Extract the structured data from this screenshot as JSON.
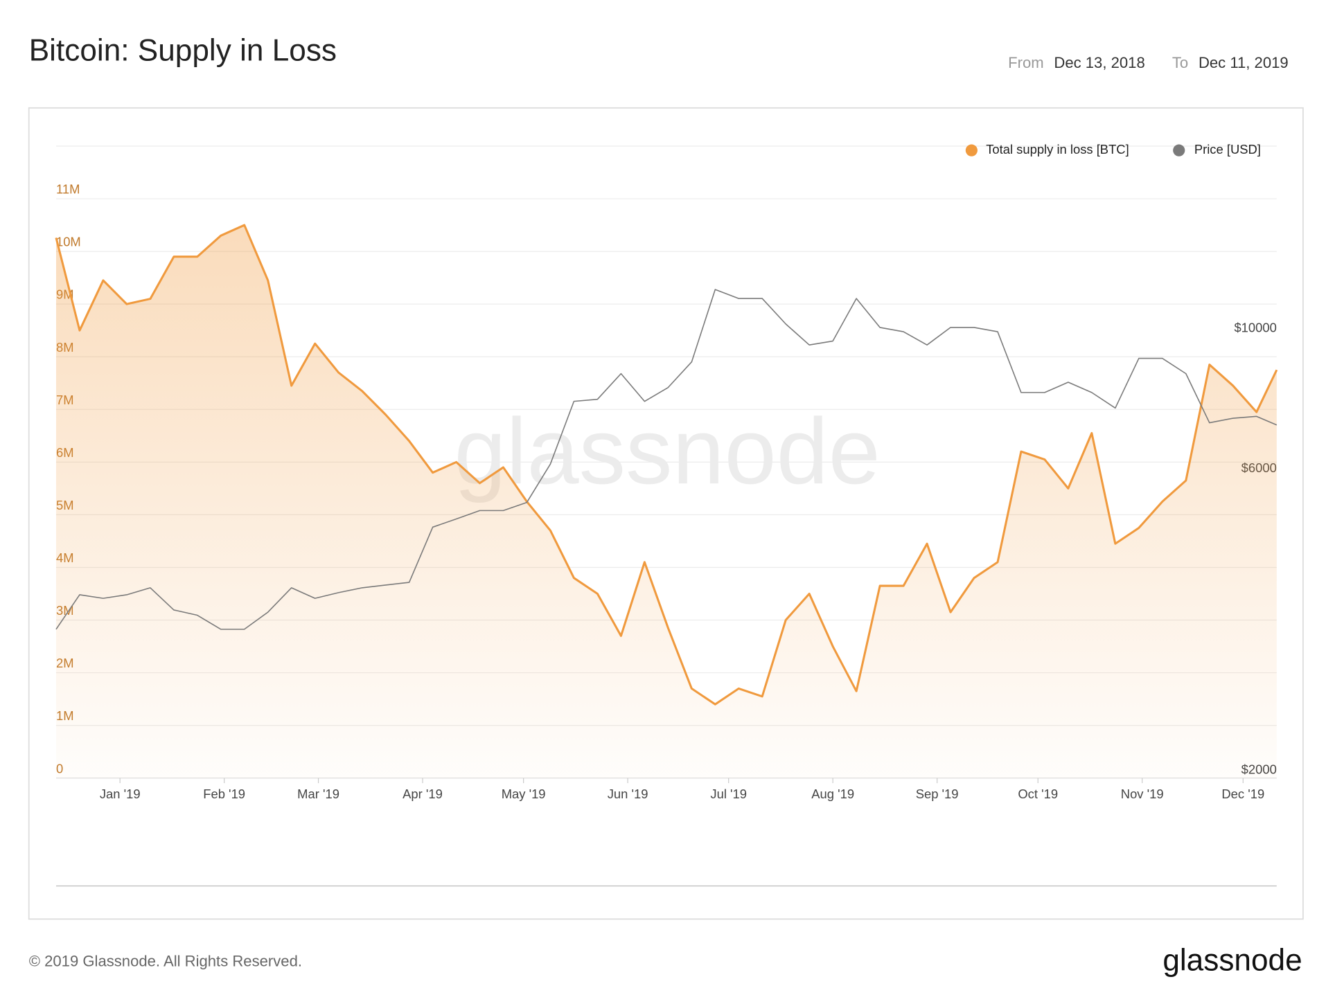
{
  "header": {
    "title": "Bitcoin: Supply in Loss",
    "from_label": "From",
    "from": "Dec 13, 2018",
    "to_label": "To",
    "to": "Dec 11, 2019"
  },
  "watermark": "glassnode",
  "footer": {
    "copyright": "© 2019 Glassnode. All Rights Reserved.",
    "logo": "glassnode"
  },
  "chart_data": {
    "type": "line",
    "legend": "top-right",
    "grid": true,
    "x": [
      "2018-12-13",
      "2018-12-20",
      "2018-12-27",
      "2019-01-03",
      "2019-01-10",
      "2019-01-17",
      "2019-01-24",
      "2019-01-31",
      "2019-02-07",
      "2019-02-14",
      "2019-02-21",
      "2019-02-28",
      "2019-03-07",
      "2019-03-14",
      "2019-03-21",
      "2019-03-28",
      "2019-04-04",
      "2019-04-11",
      "2019-04-18",
      "2019-04-25",
      "2019-05-02",
      "2019-05-09",
      "2019-05-16",
      "2019-05-23",
      "2019-05-30",
      "2019-06-06",
      "2019-06-13",
      "2019-06-20",
      "2019-06-27",
      "2019-07-04",
      "2019-07-11",
      "2019-07-18",
      "2019-07-25",
      "2019-08-01",
      "2019-08-08",
      "2019-08-15",
      "2019-08-22",
      "2019-08-29",
      "2019-09-05",
      "2019-09-12",
      "2019-09-19",
      "2019-09-26",
      "2019-10-03",
      "2019-10-10",
      "2019-10-17",
      "2019-10-24",
      "2019-10-31",
      "2019-11-07",
      "2019-11-14",
      "2019-11-21",
      "2019-11-28",
      "2019-12-05",
      "2019-12-11"
    ],
    "xlim": [
      "2018-12-13",
      "2019-12-11"
    ],
    "xticks": [
      {
        "value": "2019-01-01",
        "label": "Jan '19"
      },
      {
        "value": "2019-02-01",
        "label": "Feb '19"
      },
      {
        "value": "2019-03-01",
        "label": "Mar '19"
      },
      {
        "value": "2019-04-01",
        "label": "Apr '19"
      },
      {
        "value": "2019-05-01",
        "label": "May '19"
      },
      {
        "value": "2019-06-01",
        "label": "Jun '19"
      },
      {
        "value": "2019-07-01",
        "label": "Jul '19"
      },
      {
        "value": "2019-08-01",
        "label": "Aug '19"
      },
      {
        "value": "2019-09-01",
        "label": "Sep '19"
      },
      {
        "value": "2019-10-01",
        "label": "Oct '19"
      },
      {
        "value": "2019-11-01",
        "label": "Nov '19"
      },
      {
        "value": "2019-12-01",
        "label": "Dec '19"
      }
    ],
    "ylim": [
      0,
      12000000
    ],
    "yticks": [
      0,
      {
        "value": 1000000,
        "label": "1M"
      },
      {
        "value": 2000000,
        "label": "2M"
      },
      {
        "value": 3000000,
        "label": "3M"
      },
      {
        "value": 4000000,
        "label": "4M"
      },
      {
        "value": 5000000,
        "label": "5M"
      },
      {
        "value": 6000000,
        "label": "6M"
      },
      {
        "value": 7000000,
        "label": "7M"
      },
      {
        "value": 8000000,
        "label": "8M"
      },
      {
        "value": 9000000,
        "label": "9M"
      },
      {
        "value": 10000000,
        "label": "10M"
      },
      {
        "value": 11000000,
        "label": "11M"
      }
    ],
    "y2lim": [
      2000,
      20000
    ],
    "y2scale": "log",
    "y2ticks": [
      {
        "value": 2000,
        "label": "$2000"
      },
      {
        "value": 6000,
        "label": "$6000"
      },
      {
        "value": 10000,
        "label": "$10000"
      }
    ],
    "series": [
      {
        "name": "Total supply in loss [BTC]",
        "color": "#f09a3e",
        "values": [
          10260000,
          8500000,
          9450000,
          9000000,
          9100000,
          9900000,
          9900000,
          10300000,
          10500000,
          9450000,
          7450000,
          8250000,
          7700000,
          7350000,
          6900000,
          6400000,
          5800000,
          6000000,
          5600000,
          5900000,
          5250000,
          4700000,
          3800000,
          3500000,
          2700000,
          4100000,
          2850000,
          1700000,
          1400000,
          1700000,
          1550000,
          3000000,
          3500000,
          2500000,
          1650000,
          3650000,
          3650000,
          4450000,
          3150000,
          3800000,
          4100000,
          6200000,
          6050000,
          5500000,
          6550000,
          4450000,
          4750000,
          5250000,
          5650000,
          7850000,
          7450000,
          6950000,
          7750000
        ]
      },
      {
        "name": "Price [USD]",
        "color": "#7a7a7a",
        "axis": "y2",
        "values": [
          3440,
          3900,
          3850,
          3900,
          4000,
          3690,
          3620,
          3440,
          3440,
          3660,
          4000,
          3850,
          3930,
          4000,
          4040,
          4080,
          4990,
          5140,
          5300,
          5300,
          5460,
          6280,
          7890,
          7950,
          8730,
          7890,
          8300,
          9110,
          11860,
          11480,
          11480,
          10460,
          9690,
          9830,
          11480,
          10330,
          10170,
          9690,
          10330,
          10330,
          10170,
          8150,
          8150,
          8460,
          8150,
          7700,
          9230,
          9230,
          8730,
          7300,
          7420,
          7470,
          7240
        ]
      }
    ]
  }
}
